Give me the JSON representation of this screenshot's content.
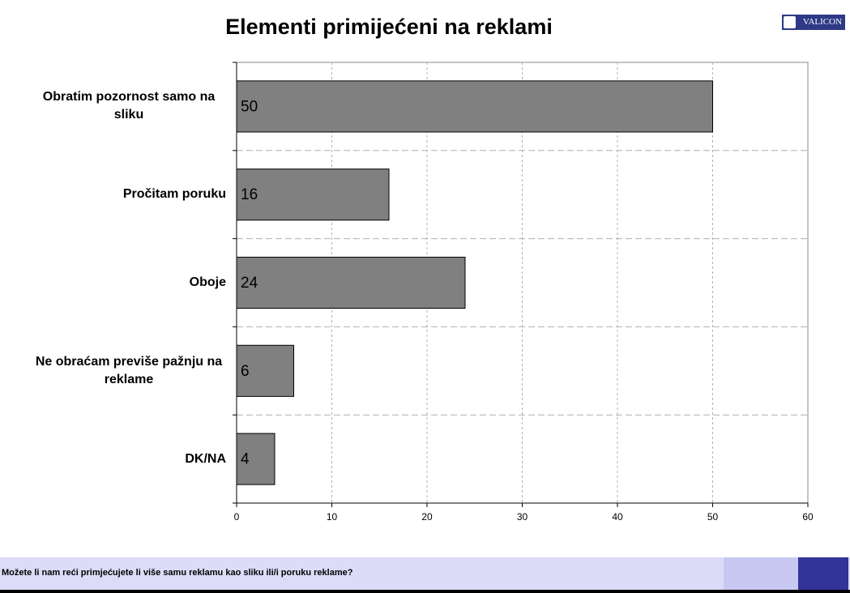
{
  "logo": "VALICON",
  "footer": {
    "question": "Možete li nam reći primjećujete li više samu reklamu kao sliku ili/i poruku reklame?"
  },
  "chart_data": {
    "type": "bar",
    "orientation": "horizontal",
    "title": "Elementi primijećeni na reklami",
    "categories": [
      "Obratim pozornost samo na sliku",
      "Pročitam poruku",
      "Oboje",
      "Ne obraćam previše pažnju na reklame",
      "DK/NA"
    ],
    "values": [
      50,
      16,
      24,
      6,
      4
    ],
    "color": "#808080",
    "xlim": [
      0,
      60
    ],
    "xticks": [
      0,
      10,
      20,
      30,
      40,
      50,
      60
    ],
    "grid": true
  }
}
